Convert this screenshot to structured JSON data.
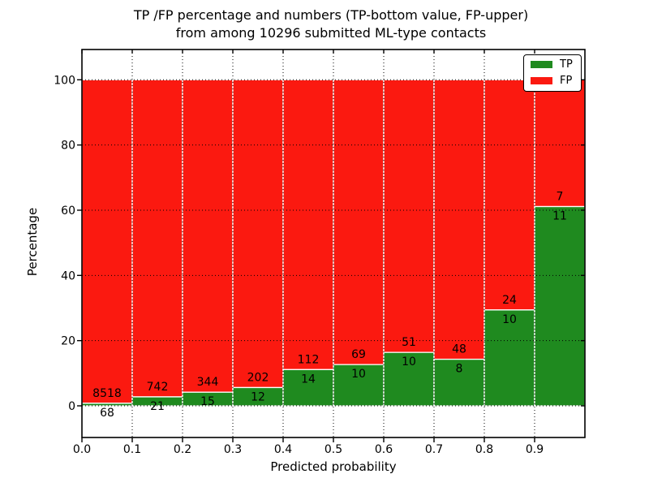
{
  "title": {
    "line1": "TP /FP percentage and numbers (TP-bottom value, FP-upper)",
    "line2": "from among 10296 submitted ML-type contacts"
  },
  "chart_data": {
    "type": "bar",
    "stacked": true,
    "normalized": "each 0.1 probability bin scaled to 100%",
    "title": "TP /FP percentage and numbers (TP-bottom value, FP-upper) from among 10296 submitted ML-type contacts",
    "xlabel": "Predicted probability",
    "ylabel": "Percentage",
    "total_contacts": 10296,
    "bin_edges": [
      0.0,
      0.1,
      0.2,
      0.3,
      0.4,
      0.5,
      0.6,
      0.7,
      0.8,
      0.9,
      1.0
    ],
    "x_tick_labels": [
      "0.0",
      "0.1",
      "0.2",
      "0.3",
      "0.4",
      "0.5",
      "0.6",
      "0.7",
      "0.8",
      "0.9"
    ],
    "y_ticks": [
      0,
      20,
      40,
      60,
      80,
      100
    ],
    "xlim": [
      0,
      1
    ],
    "ylim": [
      -10,
      110
    ],
    "grid": "dotted black, horizontal at y ticks and vertical at bin edges, drawn over bars",
    "legend_position": "upper right",
    "series": [
      {
        "name": "TP",
        "position": "bottom",
        "color": "#1f8a1f",
        "counts": [
          68,
          21,
          15,
          12,
          14,
          10,
          10,
          8,
          10,
          11
        ]
      },
      {
        "name": "FP",
        "position": "top",
        "color": "#fb1910",
        "counts": [
          8518,
          742,
          344,
          202,
          112,
          69,
          51,
          48,
          24,
          7
        ]
      }
    ],
    "tp_percent_by_bin": [
      0.79,
      2.75,
      4.18,
      5.61,
      11.11,
      12.66,
      16.39,
      14.29,
      29.41,
      61.11
    ]
  },
  "colors": {
    "tp_green": "#1f8a1f",
    "fp_red": "#fb1910",
    "bar_edge": "#ffffff",
    "axis": "#000000",
    "grid": "#000000",
    "background": "#ffffff"
  }
}
